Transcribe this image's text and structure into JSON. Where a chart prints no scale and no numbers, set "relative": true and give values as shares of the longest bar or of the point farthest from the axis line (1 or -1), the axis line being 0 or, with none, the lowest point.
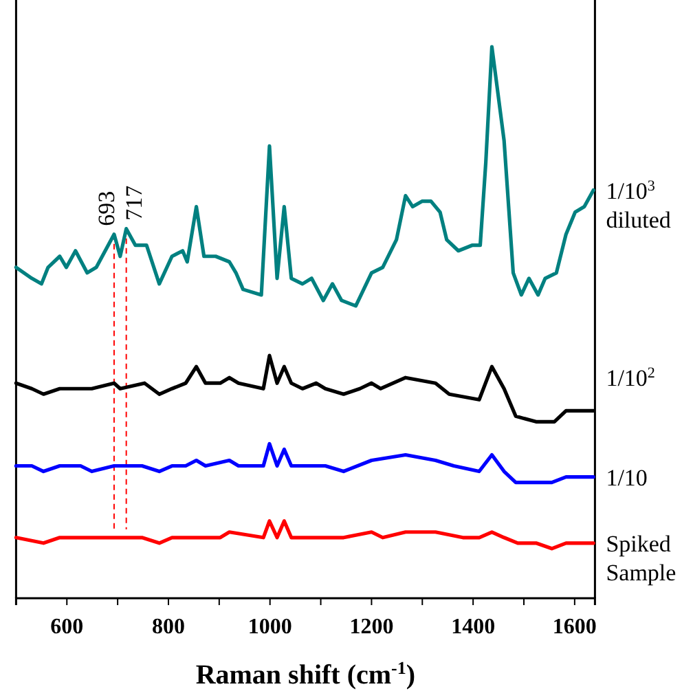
{
  "chart_data": {
    "type": "line",
    "relative": true,
    "xlabel": "Raman shift (cm$^{-1}$)",
    "xlim": [
      500,
      1640
    ],
    "xticks": [
      600,
      {
        "value": 700,
        "label": null
      },
      800,
      {
        "value": 900,
        "label": null
      },
      1000,
      {
        "value": 1100,
        "label": null
      },
      1200,
      {
        "value": 1300,
        "label": null
      },
      1400,
      {
        "value": 1500,
        "label": null
      },
      1600
    ],
    "series": [
      {
        "name": "1/10$^{3}$ diluted",
        "color": "#008080",
        "x": [
          500,
          531,
          550,
          563,
          586,
          599,
          617,
          640,
          658,
          693,
          705,
          717,
          735,
          757,
          782,
          807,
          828,
          837,
          855,
          870,
          893,
          920,
          933,
          947,
          983,
          999,
          1014,
          1028,
          1042,
          1064,
          1082,
          1105,
          1123,
          1141,
          1169,
          1200,
          1222,
          1249,
          1267,
          1281,
          1300,
          1317,
          1335,
          1348,
          1371,
          1398,
          1414,
          1425,
          1437,
          1461,
          1479,
          1495,
          1510,
          1528,
          1542,
          1564,
          1583,
          1601,
          1619,
          1637
        ],
        "values": [
          0.6,
          0.58,
          0.57,
          0.6,
          0.62,
          0.6,
          0.63,
          0.59,
          0.6,
          0.66,
          0.62,
          0.67,
          0.64,
          0.64,
          0.57,
          0.62,
          0.63,
          0.61,
          0.71,
          0.62,
          0.62,
          0.61,
          0.59,
          0.56,
          0.55,
          0.82,
          0.58,
          0.71,
          0.58,
          0.57,
          0.58,
          0.54,
          0.57,
          0.54,
          0.53,
          0.59,
          0.6,
          0.65,
          0.73,
          0.71,
          0.72,
          0.72,
          0.7,
          0.65,
          0.63,
          0.64,
          0.64,
          0.79,
          1,
          0.83,
          0.59,
          0.55,
          0.58,
          0.55,
          0.58,
          0.59,
          0.66,
          0.7,
          0.71,
          0.74
        ]
      },
      {
        "name": "1/10$^{2}$",
        "color": "#000000",
        "x": [
          500,
          531,
          554,
          586,
          604,
          622,
          649,
          693,
          705,
          753,
          782,
          807,
          834,
          855,
          873,
          902,
          920,
          938,
          987,
          999,
          1014,
          1028,
          1042,
          1064,
          1091,
          1109,
          1145,
          1177,
          1200,
          1218,
          1267,
          1326,
          1353,
          1412,
          1437,
          1461,
          1484,
          1524,
          1560,
          1583,
          1606,
          1637
        ],
        "values": [
          0.39,
          0.38,
          0.37,
          0.38,
          0.38,
          0.38,
          0.38,
          0.39,
          0.38,
          0.39,
          0.37,
          0.38,
          0.39,
          0.42,
          0.39,
          0.39,
          0.4,
          0.39,
          0.38,
          0.44,
          0.39,
          0.42,
          0.39,
          0.38,
          0.39,
          0.38,
          0.37,
          0.38,
          0.39,
          0.38,
          0.4,
          0.39,
          0.37,
          0.36,
          0.42,
          0.38,
          0.33,
          0.32,
          0.32,
          0.34,
          0.34,
          0.34
        ]
      },
      {
        "name": "1/10",
        "color": "#0000ff",
        "x": [
          500,
          531,
          554,
          586,
          627,
          649,
          693,
          717,
          748,
          782,
          807,
          834,
          855,
          873,
          920,
          938,
          987,
          999,
          1014,
          1028,
          1042,
          1073,
          1109,
          1145,
          1200,
          1267,
          1326,
          1362,
          1412,
          1437,
          1461,
          1484,
          1524,
          1555,
          1583,
          1606,
          1637
        ],
        "values": [
          0.24,
          0.24,
          0.23,
          0.24,
          0.24,
          0.23,
          0.24,
          0.24,
          0.24,
          0.23,
          0.24,
          0.24,
          0.25,
          0.24,
          0.25,
          0.24,
          0.24,
          0.28,
          0.24,
          0.27,
          0.24,
          0.24,
          0.24,
          0.23,
          0.25,
          0.26,
          0.25,
          0.24,
          0.23,
          0.26,
          0.23,
          0.21,
          0.21,
          0.21,
          0.22,
          0.22,
          0.22
        ]
      },
      {
        "name": "Spiked Sample",
        "color": "#ff0000",
        "x": [
          500,
          554,
          586,
          622,
          649,
          693,
          717,
          748,
          782,
          807,
          857,
          902,
          920,
          987,
          999,
          1014,
          1028,
          1042,
          1082,
          1109,
          1145,
          1200,
          1222,
          1267,
          1326,
          1380,
          1412,
          1437,
          1461,
          1488,
          1524,
          1555,
          1583,
          1606,
          1637
        ],
        "values": [
          0.11,
          0.1,
          0.11,
          0.11,
          0.11,
          0.11,
          0.11,
          0.11,
          0.1,
          0.11,
          0.11,
          0.11,
          0.12,
          0.11,
          0.14,
          0.11,
          0.14,
          0.11,
          0.11,
          0.11,
          0.11,
          0.12,
          0.11,
          0.12,
          0.12,
          0.11,
          0.11,
          0.12,
          0.11,
          0.1,
          0.1,
          0.09,
          0.1,
          0.1,
          0.1
        ]
      }
    ],
    "ref_lines": [
      {
        "axis": "x",
        "value": 693,
        "label": "693",
        "color": "#ff0000",
        "line_style": "dashed"
      },
      {
        "axis": "x",
        "value": 717,
        "label": "717",
        "color": "#ff0000",
        "line_style": "dashed"
      }
    ]
  }
}
